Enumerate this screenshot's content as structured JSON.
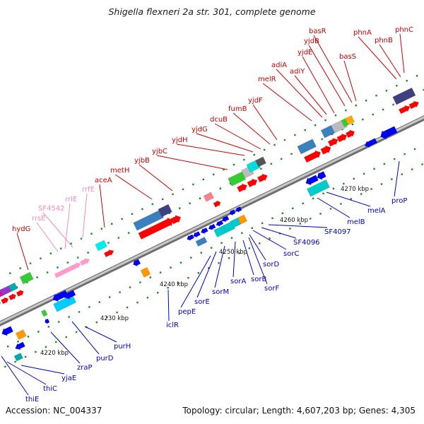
{
  "title": "Shigella flexneri 2a str. 301, complete genome",
  "footer": {
    "accession": "Accession: NC_004337",
    "summary": "Topology: circular; Length: 4,607,203 bp; Genes: 4,305"
  },
  "colors": {
    "top_label": "#cc0000",
    "rna_label": "#f08cbf",
    "bottom_label": "#0000cc",
    "ticks": "#1a8a1a",
    "backbone": "#9a9a9a"
  },
  "scale_labels": [
    "4220 kbp",
    "4230 kbp",
    "4240 kbp",
    "4250 kbp",
    "4260 kbp",
    "4270 kbp"
  ],
  "genes_top": [
    "hydG",
    "rrsE",
    "SF4542",
    "rrlE",
    "rrfE",
    "aceA",
    "metH",
    "yjbB",
    "yjbC",
    "yjdH",
    "yjdG",
    "dcuB",
    "fumB",
    "yjdF",
    "melR",
    "adiA",
    "adiY",
    "yjdE",
    "yjdB",
    "basR",
    "basS",
    "phnA",
    "phnB",
    "phnC"
  ],
  "genes_bottom": [
    "thiE",
    "thiC",
    "yjaE",
    "zraP",
    "purD",
    "purH",
    "iclR",
    "pepE",
    "sorE",
    "sorM",
    "sorA",
    "sorB",
    "sorF",
    "sorD",
    "sorC",
    "SF4096",
    "SF4097",
    "melB",
    "melA",
    "proP"
  ]
}
